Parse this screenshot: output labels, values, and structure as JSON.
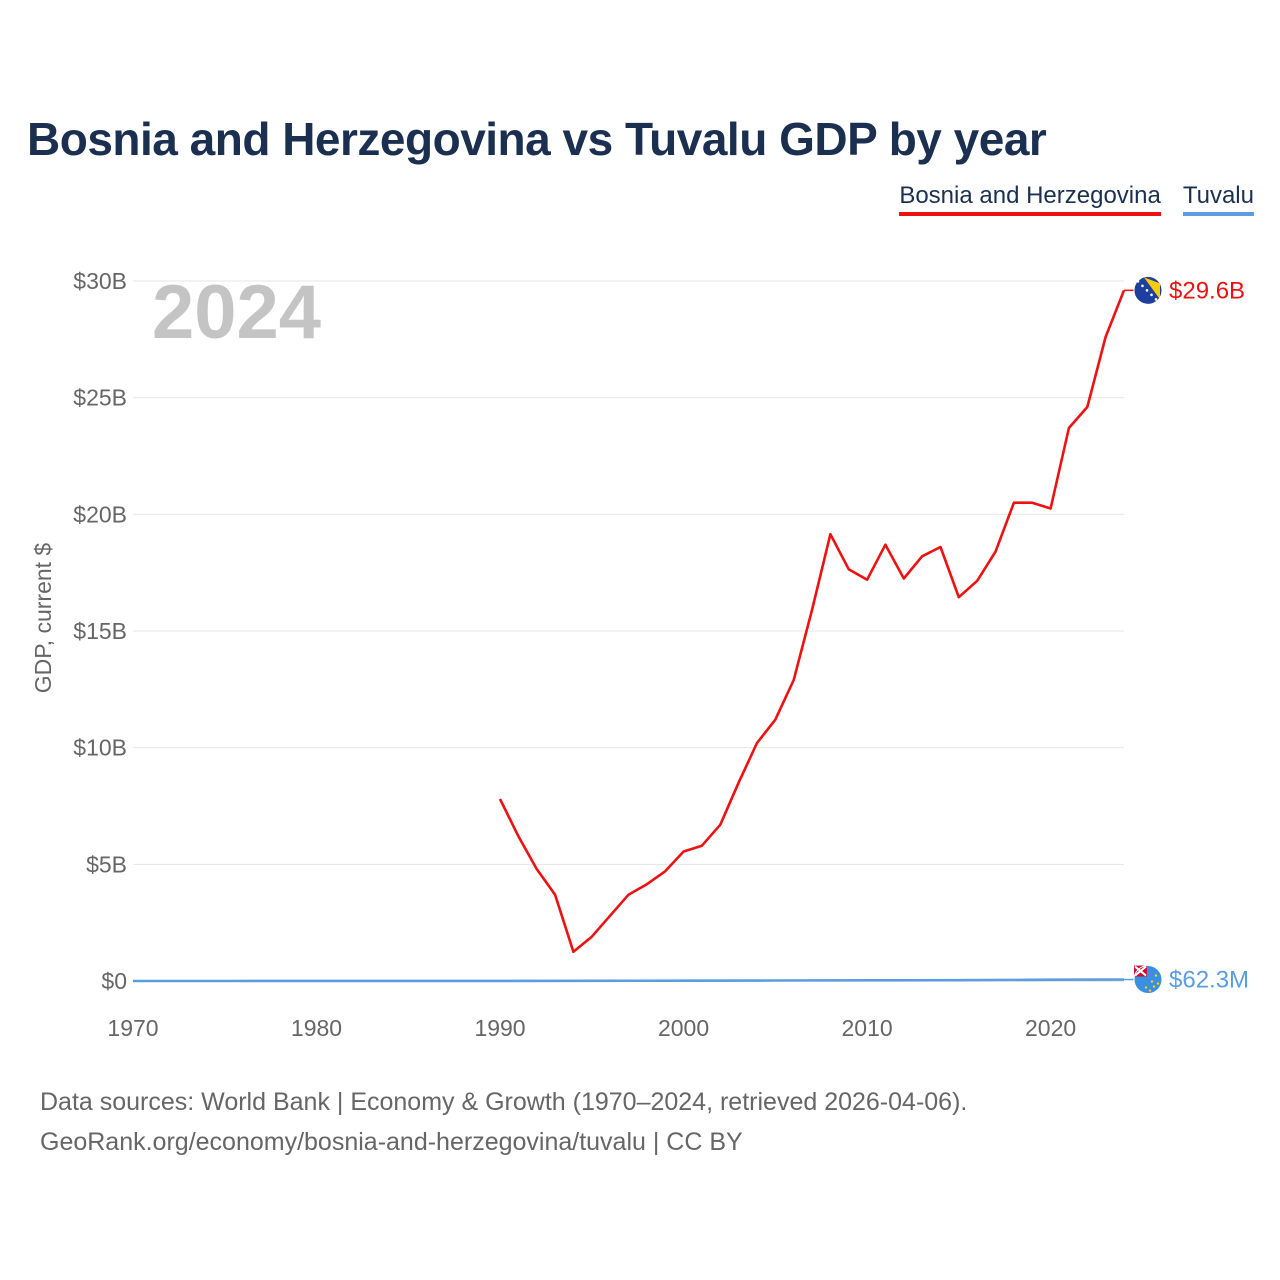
{
  "title": "Bosnia and Herzegovina vs Tuvalu GDP by year",
  "legend": [
    {
      "name": "Bosnia and Herzegovina",
      "color": "#ee1111"
    },
    {
      "name": "Tuvalu",
      "color": "#5b9de0"
    }
  ],
  "footer": {
    "line1": "Data sources: World Bank | Economy & Growth (1970–2024, retrieved 2026-04-06).",
    "line2": "GeoRank.org/economy/bosnia-and-herzegovina/tuvalu | CC BY"
  },
  "chart_data": {
    "type": "line",
    "title": "Bosnia and Herzegovina vs Tuvalu GDP by year",
    "year_label": "2024",
    "ylabel": "GDP, current $",
    "xlabel": "",
    "xlim": [
      1970,
      2024
    ],
    "ylim": [
      0,
      30
    ],
    "y_unit": "billion USD",
    "x_ticks": [
      1970,
      1980,
      1990,
      2000,
      2010,
      2020
    ],
    "x_tick_labels": [
      "1970",
      "1980",
      "1990",
      "2000",
      "2010",
      "2020"
    ],
    "y_ticks": [
      0,
      5,
      10,
      15,
      20,
      25,
      30
    ],
    "y_tick_labels": [
      "$0",
      "$5B",
      "$10B",
      "$15B",
      "$20B",
      "$25B",
      "$30B"
    ],
    "grid": true,
    "legend_position": "top-right",
    "series": [
      {
        "name": "Bosnia and Herzegovina",
        "color": "#ee1111",
        "end_label": "$29.6B",
        "x": [
          1990,
          1991,
          1992,
          1993,
          1994,
          1995,
          1996,
          1997,
          1998,
          1999,
          2000,
          2001,
          2002,
          2003,
          2004,
          2005,
          2006,
          2007,
          2008,
          2009,
          2010,
          2011,
          2012,
          2013,
          2014,
          2015,
          2016,
          2017,
          2018,
          2019,
          2020,
          2021,
          2022,
          2023,
          2024
        ],
        "values": [
          7.8,
          6.2,
          4.8,
          3.7,
          1.25,
          1.9,
          2.8,
          3.7,
          4.15,
          4.7,
          5.55,
          5.8,
          6.7,
          8.5,
          10.2,
          11.2,
          12.9,
          15.9,
          19.15,
          17.65,
          17.2,
          18.7,
          17.25,
          18.2,
          18.6,
          16.45,
          17.15,
          18.4,
          20.5,
          20.5,
          20.25,
          23.7,
          24.6,
          27.6,
          29.6
        ]
      },
      {
        "name": "Tuvalu",
        "color": "#5b9de0",
        "end_label": "$62.3M",
        "x": [
          1970,
          1975,
          1980,
          1985,
          1990,
          1995,
          2000,
          2005,
          2010,
          2015,
          2020,
          2023,
          2024
        ],
        "values": [
          0.0015,
          0.002,
          0.003,
          0.004,
          0.006,
          0.009,
          0.013,
          0.02,
          0.032,
          0.036,
          0.055,
          0.062,
          0.0623
        ]
      }
    ]
  }
}
